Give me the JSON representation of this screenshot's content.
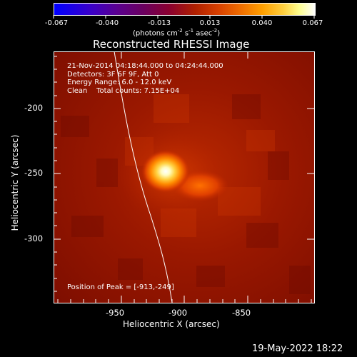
{
  "colorbar": {
    "tick_labels": [
      "-0.067",
      "-0.040",
      "-0.013",
      "0.013",
      "0.040",
      "0.067"
    ],
    "unit_prefix": "(photons cm",
    "unit_exp1": "-2",
    "unit_mid1": " s",
    "unit_exp2": "-1",
    "unit_mid2": " asec",
    "unit_exp3": "-2",
    "unit_suffix": ")"
  },
  "title": "Reconstructed RHESSI Image",
  "info": {
    "line1": "21-Nov-2014 04:18:44.000 to 04:24:44.000",
    "line2": "Detectors: 3F 6F 9F, Att 0",
    "line3": "Energy Range: 6.0 - 12.0 keV",
    "line4": "Clean    Total counts: 7.15E+04",
    "peak": "Position of Peak = [-913,-249]"
  },
  "axes": {
    "x_label": "Heliocentric X (arcsec)",
    "y_label": "Heliocentric Y (arcsec)",
    "x_ticks": [
      "-950",
      "-900",
      "-850"
    ],
    "y_ticks": [
      "-200",
      "-250",
      "-300"
    ]
  },
  "timestamp": "19-May-2022 18:22"
}
